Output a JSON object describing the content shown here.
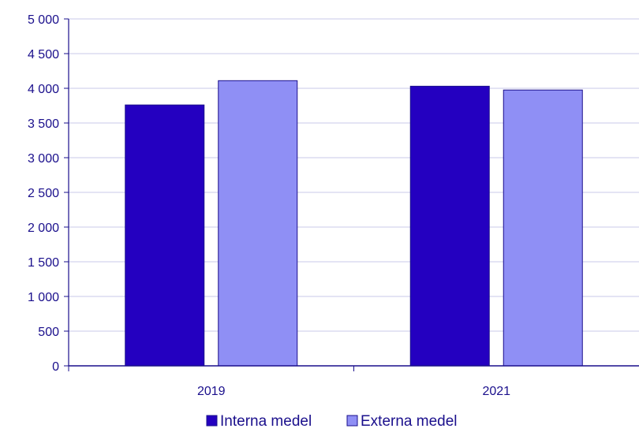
{
  "chart_data": {
    "type": "bar",
    "title": "",
    "xlabel": "",
    "ylabel": "",
    "categories": [
      "2019",
      "2021"
    ],
    "series": [
      {
        "name": "Interna medel",
        "values": [
          3760,
          4030
        ],
        "color": "#2400c0"
      },
      {
        "name": "Externa medel",
        "values": [
          4110,
          3975
        ],
        "color": "#8f8ff5"
      }
    ],
    "ylim": [
      0,
      5000
    ],
    "yticks": [
      0,
      500,
      1000,
      1500,
      2000,
      2500,
      3000,
      3500,
      4000,
      4500,
      5000
    ],
    "ytick_labels": [
      "0",
      "500",
      "1 000",
      "1 500",
      "2 000",
      "2 500",
      "3 000",
      "3 500",
      "4 000",
      "4 500",
      "5 000"
    ],
    "grid": true,
    "legend": "bottom-center",
    "colors": {
      "axis": "#1a0f8c",
      "grid": "#c9c9ea",
      "text": "#1a0f8c"
    }
  }
}
